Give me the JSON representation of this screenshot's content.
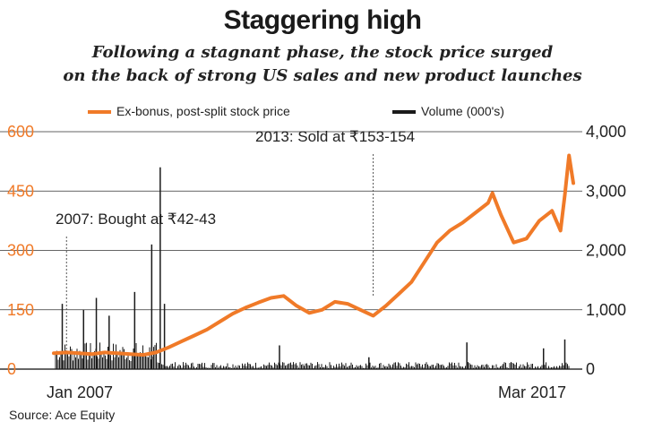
{
  "title": "Staggering high",
  "subtitle_lines": [
    "Following a stagnant phase, the stock price surged",
    "on the back of strong US sales and new product launches"
  ],
  "source": "Source: Ace Equity",
  "colors": {
    "price": "#f07a28",
    "volume": "#1a1a1a",
    "grid": "#333333",
    "left_axis": "#f07a28",
    "right_axis": "#222222"
  },
  "chart_data": {
    "type": "line",
    "x_start_label": "Jan 2007",
    "x_end_label": "Mar 2017",
    "xlim": [
      "2007-01",
      "2017-03"
    ],
    "legend": {
      "placement": "top",
      "price": "Ex-bonus, post-split stock price",
      "volume": "Volume (000's)"
    },
    "left_axis": {
      "ticks": [
        "600",
        "450",
        "300",
        "150",
        "0"
      ],
      "values": [
        600,
        450,
        300,
        150,
        0
      ],
      "ylim": [
        0,
        600
      ]
    },
    "right_axis": {
      "ticks": [
        "4,000",
        "3,000",
        "2,000",
        "1,000",
        "0"
      ],
      "values": [
        4000,
        3000,
        2000,
        1000,
        0
      ],
      "ylim": [
        0,
        4000
      ]
    },
    "grid": true,
    "annotations": [
      {
        "text": "2007: Bought at ₹42-43",
        "date": "2007-04"
      },
      {
        "text": "2013: Sold at ₹153-154",
        "date": "2013-04"
      }
    ],
    "series": [
      {
        "name": "Ex-bonus, post-split stock price",
        "axis": "left",
        "points": [
          [
            "2007-01",
            40
          ],
          [
            "2007-04",
            42
          ],
          [
            "2007-07",
            40
          ],
          [
            "2007-10",
            38
          ],
          [
            "2008-01",
            42
          ],
          [
            "2008-04",
            40
          ],
          [
            "2008-07",
            38
          ],
          [
            "2008-10",
            36
          ],
          [
            "2009-01",
            42
          ],
          [
            "2009-04",
            55
          ],
          [
            "2009-07",
            70
          ],
          [
            "2009-10",
            85
          ],
          [
            "2010-01",
            100
          ],
          [
            "2010-04",
            120
          ],
          [
            "2010-07",
            140
          ],
          [
            "2010-10",
            155
          ],
          [
            "2011-01",
            168
          ],
          [
            "2011-04",
            180
          ],
          [
            "2011-07",
            185
          ],
          [
            "2011-10",
            160
          ],
          [
            "2012-01",
            142
          ],
          [
            "2012-04",
            150
          ],
          [
            "2012-07",
            170
          ],
          [
            "2012-10",
            165
          ],
          [
            "2013-01",
            150
          ],
          [
            "2013-04",
            135
          ],
          [
            "2013-07",
            160
          ],
          [
            "2013-10",
            190
          ],
          [
            "2014-01",
            220
          ],
          [
            "2014-04",
            270
          ],
          [
            "2014-07",
            320
          ],
          [
            "2014-10",
            350
          ],
          [
            "2015-01",
            370
          ],
          [
            "2015-04",
            395
          ],
          [
            "2015-07",
            420
          ],
          [
            "2015-08",
            445
          ],
          [
            "2015-10",
            390
          ],
          [
            "2016-01",
            320
          ],
          [
            "2016-04",
            330
          ],
          [
            "2016-07",
            375
          ],
          [
            "2016-10",
            400
          ],
          [
            "2016-12",
            350
          ],
          [
            "2017-01",
            440
          ],
          [
            "2017-02",
            540
          ],
          [
            "2017-03",
            470
          ]
        ]
      },
      {
        "name": "Volume (000's)",
        "axis": "right",
        "type": "bar",
        "note": "spikes only; daily bars shown as a dense background band",
        "spikes": [
          [
            "2007-03",
            1100
          ],
          [
            "2007-08",
            1000
          ],
          [
            "2007-11",
            1200
          ],
          [
            "2008-02",
            900
          ],
          [
            "2008-08",
            1300
          ],
          [
            "2008-12",
            2100
          ],
          [
            "2009-02",
            3400
          ],
          [
            "2009-03",
            1100
          ],
          [
            "2011-06",
            400
          ],
          [
            "2013-03",
            200
          ],
          [
            "2015-02",
            450
          ],
          [
            "2016-08",
            350
          ],
          [
            "2017-01",
            500
          ]
        ]
      }
    ]
  }
}
